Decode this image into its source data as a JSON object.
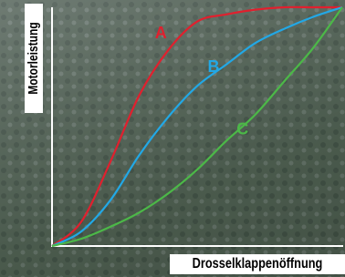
{
  "chart_data": {
    "type": "line",
    "x_label": "Drosselklappenöffnung",
    "y_label": "Motorleistung",
    "xlim": [
      0,
      100
    ],
    "ylim": [
      0,
      100
    ],
    "x": [
      0,
      10,
      20,
      30,
      40,
      50,
      60,
      70,
      80,
      90,
      100
    ],
    "series": [
      {
        "name": "A",
        "color": "#e0202e",
        "values": [
          0,
          10,
          35,
          63,
          82,
          94,
          97,
          99,
          100,
          100,
          100
        ]
      },
      {
        "name": "B",
        "color": "#22a8e6",
        "values": [
          0,
          6,
          19,
          38,
          54,
          67,
          76,
          85,
          91,
          96,
          100
        ]
      },
      {
        "name": "C",
        "color": "#4cb848",
        "values": [
          0,
          3,
          8,
          14,
          22,
          32,
          44,
          55,
          69,
          83,
          100
        ]
      }
    ]
  }
}
